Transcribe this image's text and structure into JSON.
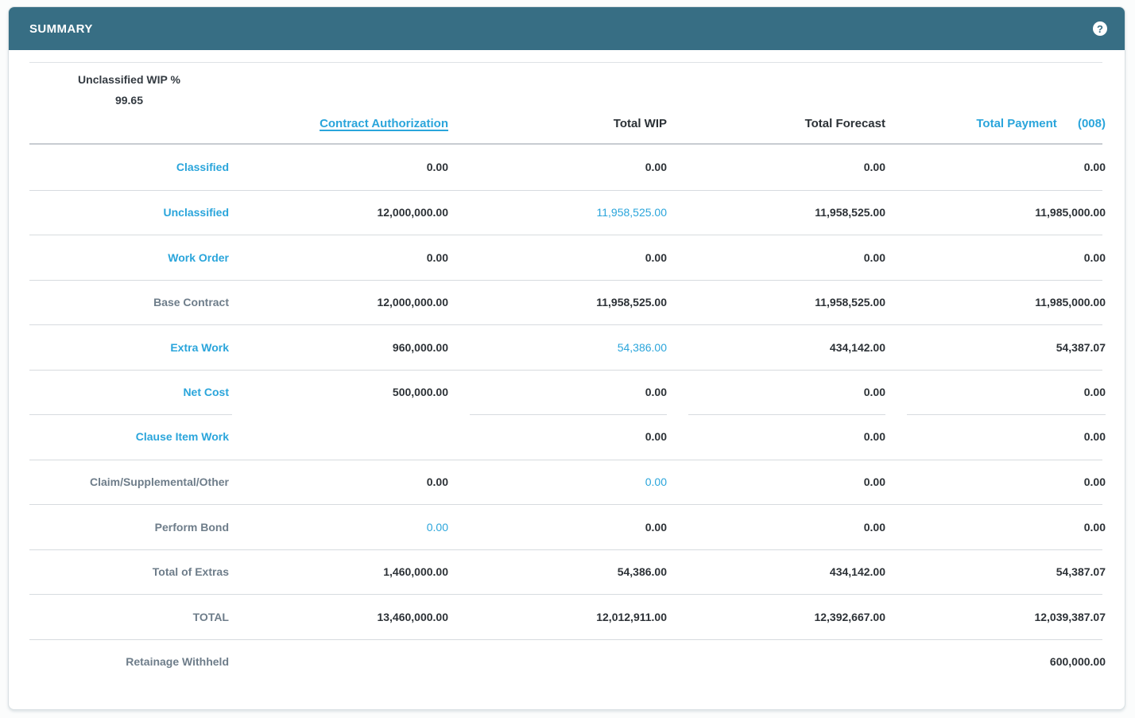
{
  "panel": {
    "title": "SUMMARY",
    "help_icon": "?"
  },
  "summary_stats": {
    "unclassified_wip_label": "Unclassified WIP %",
    "unclassified_wip_value": "99.65"
  },
  "colors": {
    "header_teal": "#376e84",
    "link_blue": "#2aa5db",
    "label_gray": "#6e7d8a",
    "value_dark": "#2d3237",
    "divider": "#d7dbdf"
  },
  "table": {
    "columns": [
      {
        "label": "Contract Authorization"
      },
      {
        "label": "Total WIP"
      },
      {
        "label": "Total Forecast"
      },
      {
        "label": "Total Payment",
        "code": "(008)"
      }
    ],
    "rows": [
      {
        "label": "Classified",
        "values": [
          "0.00",
          "0.00",
          "0.00",
          "0.00"
        ]
      },
      {
        "label": "Unclassified",
        "values": [
          "12,000,000.00",
          "11,958,525.00",
          "11,958,525.00",
          "11,985,000.00"
        ]
      },
      {
        "label": "Work Order",
        "values": [
          "0.00",
          "0.00",
          "0.00",
          "0.00"
        ]
      },
      {
        "label": "Base Contract",
        "values": [
          "12,000,000.00",
          "11,958,525.00",
          "11,958,525.00",
          "11,985,000.00"
        ]
      },
      {
        "label": "Extra Work",
        "values": [
          "960,000.00",
          "54,386.00",
          "434,142.00",
          "54,387.07"
        ]
      },
      {
        "label": "Net Cost",
        "values": [
          "500,000.00",
          "0.00",
          "0.00",
          "0.00"
        ]
      },
      {
        "label": "Clause Item Work",
        "values": [
          "",
          "0.00",
          "0.00",
          "0.00"
        ]
      },
      {
        "label": "Claim/Supplemental/Other",
        "values": [
          "0.00",
          "0.00",
          "0.00",
          "0.00"
        ]
      },
      {
        "label": "Perform Bond",
        "values": [
          "0.00",
          "0.00",
          "0.00",
          "0.00"
        ]
      },
      {
        "label": "Total of Extras",
        "values": [
          "1,460,000.00",
          "54,386.00",
          "434,142.00",
          "54,387.07"
        ]
      },
      {
        "label": "TOTAL",
        "values": [
          "13,460,000.00",
          "12,012,911.00",
          "12,392,667.00",
          "12,039,387.07"
        ]
      },
      {
        "label": "Retainage Withheld",
        "values": [
          "",
          "",
          "",
          "600,000.00"
        ]
      }
    ]
  }
}
